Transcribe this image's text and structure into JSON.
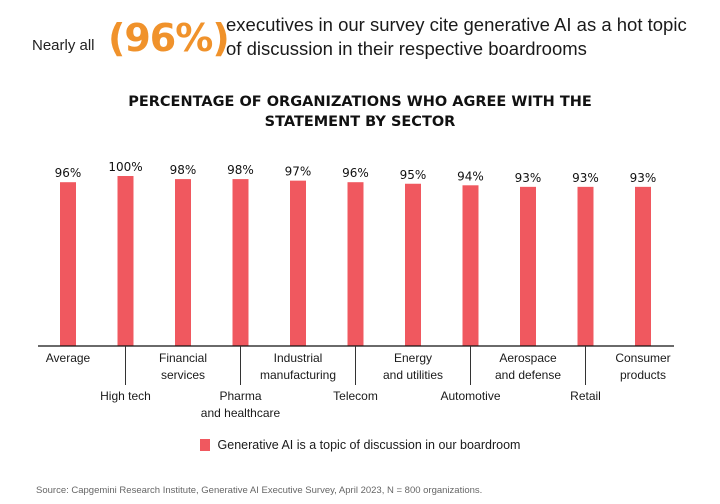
{
  "headline": {
    "prefix": "Nearly all",
    "highlight": "(96%)",
    "line1": "executives in our survey cite generative AI as a hot topic",
    "line2": "of discussion in their respective boardrooms",
    "highlight_color": "#f0922b"
  },
  "legend": {
    "label": "Generative AI is a topic of discussion in our boardroom"
  },
  "source": "Source: Capgemini Research Institute, Generative AI Executive Survey, April 2023, N = 800 organizations.",
  "chart_data": {
    "type": "bar",
    "title": "PERCENTAGE OF ORGANIZATIONS WHO AGREE WITH THE",
    "title_line2": "STATEMENT BY SECTOR",
    "xlabel": "",
    "ylabel": "",
    "ylim": [
      0,
      100
    ],
    "grid": false,
    "legend_position": "bottom",
    "bar_color": "#f0585f",
    "categories": [
      [
        "Average"
      ],
      [
        "High tech"
      ],
      [
        "Financial",
        "services"
      ],
      [
        "Pharma",
        "and healthcare"
      ],
      [
        "Industrial",
        "manufacturing"
      ],
      [
        "Telecom"
      ],
      [
        "Energy",
        "and utilities"
      ],
      [
        "Automotive"
      ],
      [
        "Aerospace",
        "and defense"
      ],
      [
        "Retail"
      ],
      [
        "Consumer",
        "products"
      ]
    ],
    "label_row": [
      "top",
      "bottom",
      "top",
      "bottom",
      "top",
      "bottom",
      "top",
      "bottom",
      "top",
      "bottom",
      "top"
    ],
    "series": [
      {
        "name": "Generative AI is a topic of discussion in our boardroom",
        "values": [
          96,
          100,
          98,
          98,
          97,
          96,
          95,
          94,
          93,
          93,
          93
        ],
        "labels": [
          "96%",
          "100%",
          "98%",
          "98%",
          "97%",
          "96%",
          "95%",
          "94%",
          "93%",
          "93%",
          "93%"
        ]
      }
    ]
  }
}
